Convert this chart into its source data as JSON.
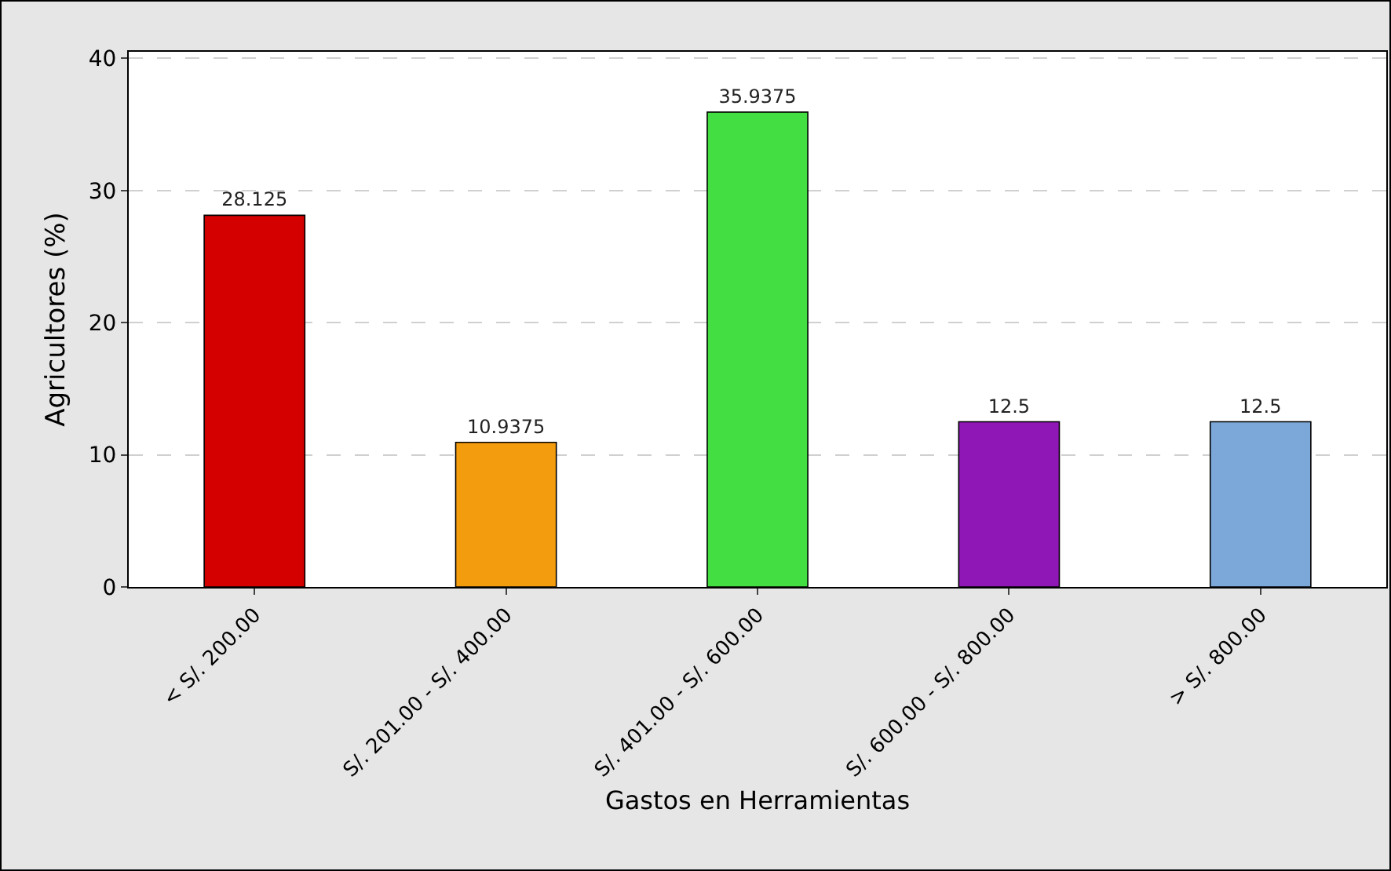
{
  "chart_data": {
    "type": "bar",
    "xlabel": "Gastos en Herramientas",
    "ylabel": "Agricultores (%)",
    "categories": [
      "< S/. 200.00",
      "S/. 201.00 - S/. 400.00",
      "S/. 401.00 - S/. 600.00",
      "S/. 600.00 - S/. 800.00",
      "> S/. 800.00"
    ],
    "values": [
      28.125,
      10.9375,
      35.9375,
      12.5,
      12.5
    ],
    "colors": [
      "#d40000",
      "#f39c0e",
      "#42de42",
      "#8e17b5",
      "#7ba7d9"
    ],
    "ylim": [
      0,
      40.5
    ],
    "yticks": [
      0,
      10,
      20,
      30,
      40
    ],
    "grid": "y",
    "data_labels": true,
    "legend": false
  }
}
